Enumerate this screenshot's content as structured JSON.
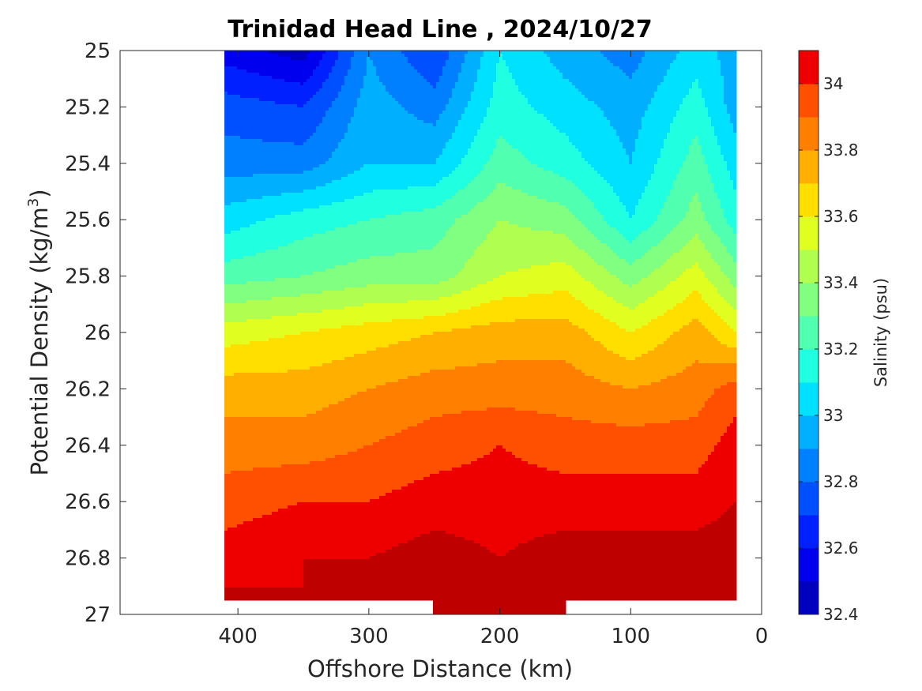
{
  "chart_data": {
    "type": "heatmap",
    "subtype": "filled-contour",
    "title": "Trinidad Head Line , 2024/10/27",
    "xlabel": "Offshore Distance (km)",
    "ylabel_main": "Potential Density (kg/m",
    "ylabel_sup": "3",
    "ylabel_close": ")",
    "colorbar_label": "Salinity (psu)",
    "x_reversed": true,
    "y_reversed": true,
    "xlim": [
      490,
      0
    ],
    "ylim": [
      25,
      27
    ],
    "x_ticks": [
      400,
      300,
      200,
      100,
      0
    ],
    "x_tick_labels": [
      "400",
      "300",
      "200",
      "100",
      "0"
    ],
    "y_ticks": [
      25,
      25.2,
      25.4,
      25.6,
      25.8,
      26,
      26.2,
      26.4,
      26.6,
      26.8,
      27
    ],
    "y_tick_labels": [
      "25",
      "25.2",
      "25.4",
      "25.6",
      "25.8",
      "26",
      "26.2",
      "26.4",
      "26.6",
      "26.8",
      "27"
    ],
    "colorbar_range": [
      32.4,
      34.1
    ],
    "colorbar_ticks": [
      32.4,
      32.6,
      32.8,
      33,
      33.2,
      33.4,
      33.6,
      33.8,
      34
    ],
    "colorbar_tick_labels": [
      "32.4",
      "32.6",
      "32.8",
      "33",
      "33.2",
      "33.4",
      "33.6",
      "33.8",
      "34"
    ],
    "levels": [
      32.4,
      32.5,
      32.6,
      32.7,
      32.8,
      32.9,
      33.0,
      33.1,
      33.2,
      33.3,
      33.4,
      33.5,
      33.6,
      33.7,
      33.8,
      33.9,
      34.0,
      34.1
    ],
    "colors": [
      "#00008F",
      "#0000BF",
      "#0000EF",
      "#0020FF",
      "#0050FF",
      "#0080FF",
      "#00B0FF",
      "#00E0FF",
      "#20FFE0",
      "#50FFB0",
      "#80FF80",
      "#B0FF50",
      "#E0FF20",
      "#FFDF00",
      "#FFAF00",
      "#FF7F00",
      "#FF4F00",
      "#EF0000",
      "#BF0000",
      "#8F0000",
      "#800000"
    ],
    "data_extent": {
      "x_range": [
        20,
        410
      ],
      "y_range": [
        25,
        27
      ]
    },
    "distance_km": [
      410,
      350,
      300,
      250,
      200,
      150,
      100,
      50,
      20
    ],
    "salinity_by_density": [
      {
        "sigma": 25.0,
        "salinity": [
          32.55,
          32.45,
          32.9,
          32.7,
          33.1,
          32.95,
          32.85,
          33.05,
          32.95
        ]
      },
      {
        "sigma": 25.2,
        "salinity": [
          32.75,
          32.7,
          32.95,
          32.85,
          33.15,
          33.05,
          32.95,
          33.15,
          32.95
        ]
      },
      {
        "sigma": 25.4,
        "salinity": [
          32.85,
          32.85,
          33.0,
          33.0,
          33.25,
          33.15,
          33.0,
          33.25,
          33.05
        ]
      },
      {
        "sigma": 25.6,
        "salinity": [
          33.05,
          33.15,
          33.2,
          33.25,
          33.4,
          33.35,
          33.1,
          33.35,
          33.15
        ]
      },
      {
        "sigma": 25.8,
        "salinity": [
          33.25,
          33.3,
          33.35,
          33.35,
          33.5,
          33.55,
          33.35,
          33.55,
          33.35
        ]
      },
      {
        "sigma": 26.0,
        "salinity": [
          33.55,
          33.6,
          33.65,
          33.7,
          33.75,
          33.75,
          33.6,
          33.75,
          33.6
        ]
      },
      {
        "sigma": 26.2,
        "salinity": [
          33.75,
          33.75,
          33.8,
          33.85,
          33.85,
          33.85,
          33.8,
          33.85,
          33.95
        ]
      },
      {
        "sigma": 26.4,
        "salinity": [
          33.85,
          33.85,
          33.9,
          33.95,
          34.0,
          33.95,
          33.95,
          33.95,
          34.05
        ]
      },
      {
        "sigma": 26.6,
        "salinity": [
          33.95,
          34.0,
          34.0,
          34.05,
          34.05,
          34.05,
          34.05,
          34.05,
          34.1
        ]
      },
      {
        "sigma": 26.8,
        "salinity": [
          34.05,
          34.1,
          34.1,
          34.15,
          34.1,
          34.15,
          34.15,
          34.15,
          34.15
        ]
      },
      {
        "sigma": 26.9,
        "salinity": [
          34.1,
          34.1,
          34.12,
          34.15,
          34.15,
          34.2,
          34.15,
          34.2,
          34.2
        ]
      },
      {
        "sigma": 27.0,
        "salinity": [
          null,
          null,
          null,
          34.2,
          34.2,
          34.2,
          null,
          null,
          null
        ]
      }
    ],
    "grid": false,
    "legend": "colorbar-right"
  }
}
